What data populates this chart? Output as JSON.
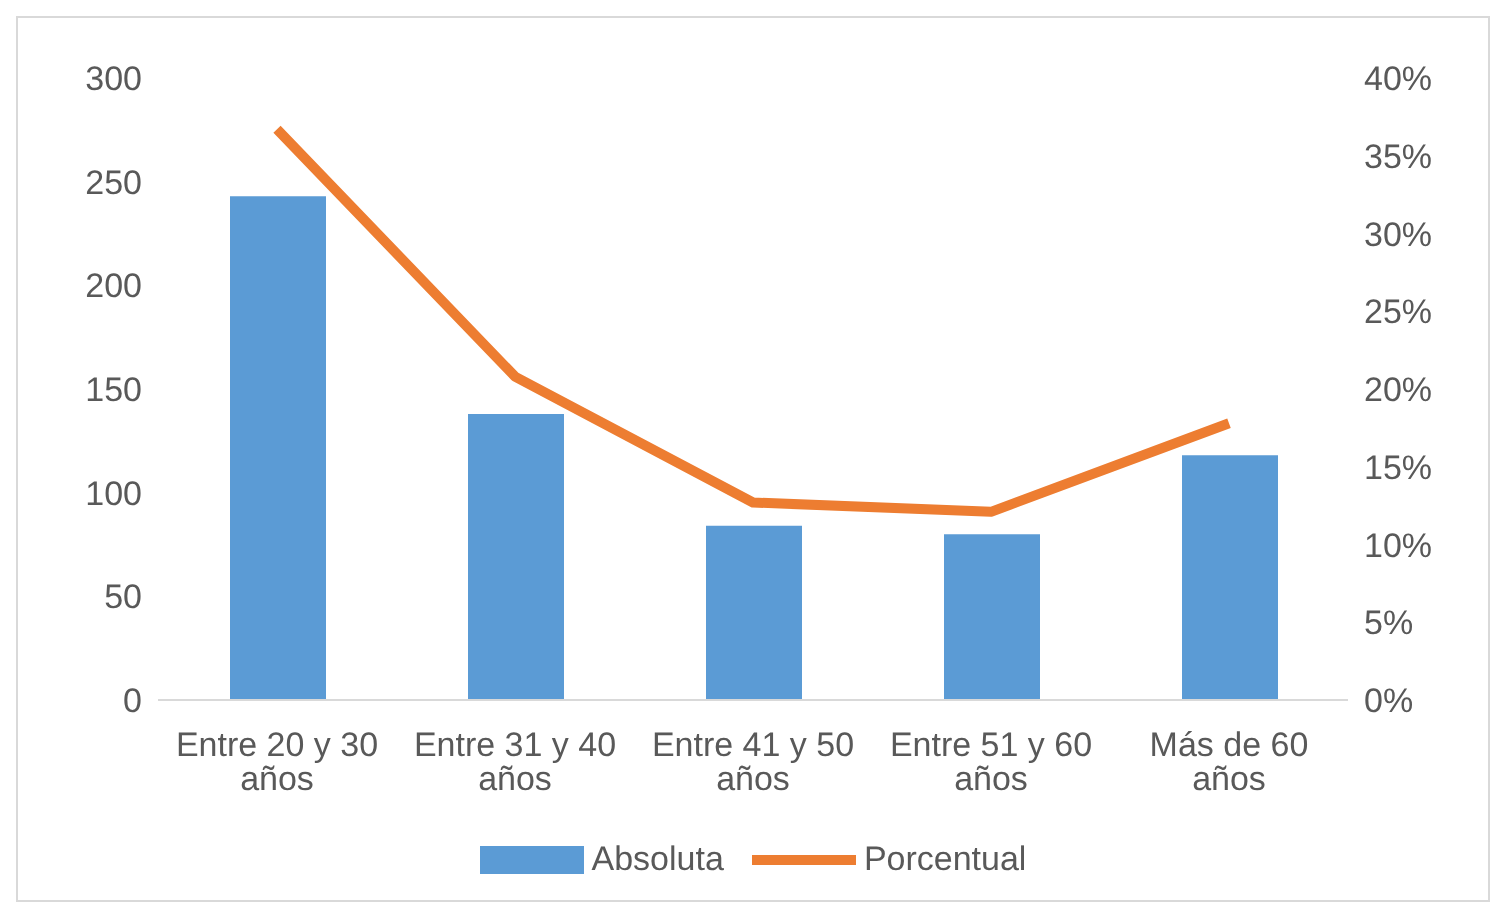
{
  "chart_data": {
    "type": "bar",
    "categories": [
      "Entre 20 y 30 años",
      "Entre 31 y 40 años",
      "Entre 41 y 50 años",
      "Entre 51 y 60 años",
      "Más de 60 años"
    ],
    "series": [
      {
        "name": "Absoluta",
        "color": "#5b9bd5",
        "values": [
          243,
          138,
          84,
          80,
          118
        ]
      },
      {
        "name": "Porcentual",
        "type": "line",
        "axis": "y2",
        "color": "#ed7d31",
        "values": [
          36.7,
          20.8,
          12.7,
          12.1,
          17.8
        ]
      }
    ],
    "ylim": [
      0,
      300
    ],
    "yticks": [
      0,
      50,
      100,
      150,
      200,
      250,
      300
    ],
    "y2lim": [
      0,
      40
    ],
    "y2ticks": [
      {
        "value": 0,
        "label": "0%"
      },
      {
        "value": 5,
        "label": "5%"
      },
      {
        "value": 10,
        "label": "10%"
      },
      {
        "value": 15,
        "label": "15%"
      },
      {
        "value": 20,
        "label": "20%"
      },
      {
        "value": 25,
        "label": "25%"
      },
      {
        "value": 30,
        "label": "30%"
      },
      {
        "value": 35,
        "label": "35%"
      },
      {
        "value": 40,
        "label": "40%"
      }
    ],
    "grid": false,
    "legend": "bottom",
    "marker": "none",
    "line_style": "solid"
  }
}
